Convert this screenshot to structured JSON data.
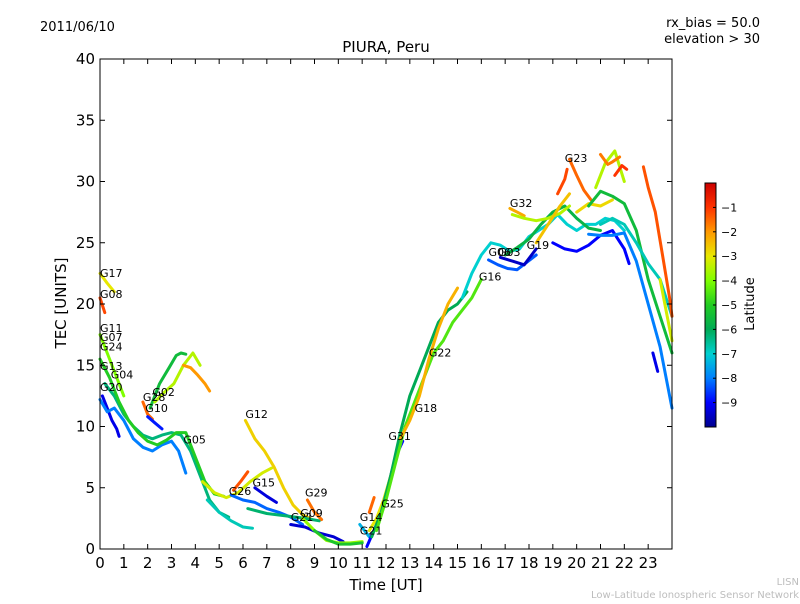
{
  "header": {
    "date": "2011/06/10",
    "info_line1": "rx_bias = 50.0",
    "info_line2": "elevation > 30"
  },
  "footer": {
    "line1": "LISN",
    "line2": "Low-Latitude Ionospheric Sensor Network"
  },
  "chart_data": {
    "type": "line",
    "title": "PIURA, Peru",
    "xlabel": "Time [UT]",
    "ylabel": "TEC [UNITS]",
    "xlim": [
      0,
      24
    ],
    "ylim": [
      0,
      40
    ],
    "xticks": [
      "0",
      "1",
      "2",
      "3",
      "4",
      "5",
      "6",
      "7",
      "8",
      "9",
      "10",
      "11",
      "12",
      "13",
      "14",
      "15",
      "16",
      "17",
      "18",
      "19",
      "20",
      "21",
      "22",
      "23"
    ],
    "yticks": [
      "0",
      "5",
      "10",
      "15",
      "20",
      "25",
      "30",
      "35",
      "40"
    ],
    "grid": false,
    "colorbar": {
      "label": "Latitude",
      "range": [
        -10,
        0
      ],
      "ticks": [
        "−1",
        "−2",
        "−3",
        "−4",
        "−5",
        "−6",
        "−7",
        "−8",
        "−9"
      ],
      "colors": [
        "#00008f",
        "#0000ff",
        "#007fff",
        "#00d0d0",
        "#00aa55",
        "#22cc22",
        "#7fff00",
        "#e8e800",
        "#ff9900",
        "#ff3300",
        "#cc0000"
      ]
    },
    "satellite_labels": [
      {
        "name": "G17",
        "x": 0.0,
        "y": 22.2
      },
      {
        "name": "G08",
        "x": 0.0,
        "y": 20.5
      },
      {
        "name": "G11",
        "x": 0.0,
        "y": 17.7
      },
      {
        "name": "G07",
        "x": 0.0,
        "y": 17.0
      },
      {
        "name": "G24",
        "x": 0.0,
        "y": 16.2
      },
      {
        "name": "G13",
        "x": 0.0,
        "y": 14.6
      },
      {
        "name": "G04",
        "x": 0.45,
        "y": 13.9
      },
      {
        "name": "G20",
        "x": 0.0,
        "y": 12.9
      },
      {
        "name": "G02",
        "x": 2.2,
        "y": 12.5
      },
      {
        "name": "G28",
        "x": 1.8,
        "y": 12.1
      },
      {
        "name": "G10",
        "x": 1.9,
        "y": 11.2
      },
      {
        "name": "G05",
        "x": 3.5,
        "y": 8.6
      },
      {
        "name": "G12",
        "x": 6.1,
        "y": 10.7
      },
      {
        "name": "G26",
        "x": 5.4,
        "y": 4.4
      },
      {
        "name": "G15",
        "x": 6.4,
        "y": 5.1
      },
      {
        "name": "G29",
        "x": 8.6,
        "y": 4.3
      },
      {
        "name": "G09",
        "x": 8.4,
        "y": 2.6
      },
      {
        "name": "G21",
        "x": 8.0,
        "y": 2.3
      },
      {
        "name": "G14",
        "x": 10.9,
        "y": 2.3
      },
      {
        "name": "G21",
        "x": 10.9,
        "y": 1.2
      },
      {
        "name": "G25",
        "x": 11.8,
        "y": 3.4
      },
      {
        "name": "G31",
        "x": 12.1,
        "y": 8.9
      },
      {
        "name": "G18",
        "x": 13.2,
        "y": 11.2
      },
      {
        "name": "G22",
        "x": 13.8,
        "y": 15.7
      },
      {
        "name": "G16",
        "x": 15.9,
        "y": 21.9
      },
      {
        "name": "G06",
        "x": 16.3,
        "y": 23.9
      },
      {
        "name": "G03",
        "x": 16.7,
        "y": 23.9
      },
      {
        "name": "G19",
        "x": 17.9,
        "y": 24.5
      },
      {
        "name": "G32",
        "x": 17.2,
        "y": 27.9
      },
      {
        "name": "G23",
        "x": 19.5,
        "y": 31.6
      }
    ],
    "series": [
      {
        "lat": -9.2,
        "x": [
          0.1,
          0.3,
          0.5,
          0.7,
          0.8
        ],
        "y": [
          12.5,
          11.5,
          10.5,
          9.8,
          9.2
        ]
      },
      {
        "lat": -8.0,
        "x": [
          0.0,
          0.3,
          0.6,
          1.0,
          1.4,
          1.8,
          2.2,
          2.6,
          3.0,
          3.3,
          3.6
        ],
        "y": [
          12.2,
          11.2,
          11.5,
          10.5,
          9.0,
          8.3,
          8.0,
          8.5,
          8.8,
          8.0,
          6.2
        ]
      },
      {
        "lat": -6.3,
        "x": [
          0.2,
          0.6,
          1.0,
          1.4,
          1.8,
          2.2,
          2.6,
          3.0,
          3.4,
          3.8,
          4.2,
          4.6,
          5.0,
          5.4
        ],
        "y": [
          13.5,
          12.5,
          11.0,
          10.0,
          9.3,
          9.0,
          9.3,
          9.5,
          9.3,
          8.0,
          6.0,
          4.0,
          3.0,
          2.6
        ]
      },
      {
        "lat": -5.0,
        "x": [
          0.0,
          0.4,
          0.8,
          1.2,
          1.6,
          2.0,
          2.4,
          2.8,
          3.2,
          3.6,
          4.0,
          4.4,
          4.8,
          5.2
        ],
        "y": [
          15.5,
          14.0,
          12.0,
          10.5,
          9.5,
          8.8,
          8.5,
          8.9,
          9.5,
          9.5,
          7.5,
          5.5,
          4.5,
          4.3
        ]
      },
      {
        "lat": -4.0,
        "x": [
          0.0,
          0.3,
          0.7,
          1.0
        ],
        "y": [
          17.5,
          16.0,
          14.0,
          12.5
        ]
      },
      {
        "lat": -3.0,
        "x": [
          0.0,
          0.3,
          0.6
        ],
        "y": [
          22.5,
          21.7,
          21.0
        ]
      },
      {
        "lat": -1.2,
        "x": [
          0.0,
          0.2
        ],
        "y": [
          20.5,
          19.3
        ]
      },
      {
        "lat": -1.5,
        "x": [
          1.8,
          2.0,
          2.2
        ],
        "y": [
          12.0,
          11.0,
          10.6
        ]
      },
      {
        "lat": -8.8,
        "x": [
          2.0,
          2.3,
          2.6
        ],
        "y": [
          10.8,
          10.3,
          9.8
        ]
      },
      {
        "lat": -5.5,
        "x": [
          2.1,
          2.5,
          2.9,
          3.2,
          3.4,
          3.6
        ],
        "y": [
          11.5,
          13.5,
          14.8,
          15.8,
          16.0,
          15.9
        ]
      },
      {
        "lat": -3.5,
        "x": [
          2.3,
          2.7,
          3.1,
          3.5,
          3.9,
          4.2
        ],
        "y": [
          12.0,
          12.8,
          13.5,
          15.0,
          16.0,
          15.0
        ]
      },
      {
        "lat": -2.0,
        "x": [
          3.5,
          3.8,
          4.1,
          4.4,
          4.6
        ],
        "y": [
          15.0,
          14.8,
          14.2,
          13.5,
          12.9
        ]
      },
      {
        "lat": -6.8,
        "x": [
          4.5,
          5.0,
          5.5,
          6.0,
          6.4
        ],
        "y": [
          4.0,
          3.0,
          2.3,
          1.8,
          1.7
        ]
      },
      {
        "lat": -3.2,
        "x": [
          4.3,
          4.8,
          5.3,
          5.8,
          6.3,
          6.8,
          7.2
        ],
        "y": [
          5.5,
          4.6,
          4.2,
          4.6,
          5.5,
          6.2,
          6.6
        ]
      },
      {
        "lat": -1.3,
        "x": [
          5.6,
          5.9,
          6.2
        ],
        "y": [
          4.8,
          5.5,
          6.3
        ]
      },
      {
        "lat": -2.7,
        "x": [
          6.1,
          6.5,
          6.9,
          7.3,
          7.7,
          8.1,
          8.5,
          8.9
        ],
        "y": [
          10.5,
          9.0,
          8.0,
          6.7,
          5.0,
          3.6,
          2.8,
          2.4
        ]
      },
      {
        "lat": -8.2,
        "x": [
          5.5,
          6.0,
          6.5,
          7.0,
          7.5,
          8.0,
          8.5
        ],
        "y": [
          4.4,
          4.0,
          3.8,
          3.3,
          3.0,
          2.6,
          2.0
        ]
      },
      {
        "lat": -9.3,
        "x": [
          6.5,
          7.0,
          7.4
        ],
        "y": [
          5.0,
          4.3,
          3.8
        ]
      },
      {
        "lat": -6.2,
        "x": [
          6.2,
          7.0,
          7.8,
          8.6,
          9.2
        ],
        "y": [
          3.3,
          2.9,
          2.7,
          2.5,
          2.3
        ]
      },
      {
        "lat": -1.6,
        "x": [
          8.7,
          9.0,
          9.3
        ],
        "y": [
          4.0,
          3.0,
          2.4
        ]
      },
      {
        "lat": -9.4,
        "x": [
          8.0,
          8.6,
          9.2,
          9.8,
          10.2
        ],
        "y": [
          2.0,
          1.8,
          1.3,
          1.0,
          0.6
        ]
      },
      {
        "lat": -3.8,
        "x": [
          8.5,
          9.0,
          9.5,
          10.0,
          10.5,
          11.0
        ],
        "y": [
          2.5,
          1.5,
          0.7,
          0.5,
          0.5,
          0.6
        ]
      },
      {
        "lat": -5.2,
        "x": [
          9.0,
          9.5,
          10.0,
          10.5,
          11.0
        ],
        "y": [
          1.5,
          0.8,
          0.4,
          0.4,
          0.5
        ]
      },
      {
        "lat": -7.4,
        "x": [
          10.9,
          11.1,
          11.3
        ],
        "y": [
          2.0,
          1.5,
          1.0
        ]
      },
      {
        "lat": -9.0,
        "x": [
          11.2,
          11.6,
          12.0,
          12.4,
          12.7
        ],
        "y": [
          0.2,
          2.0,
          4.5,
          7.5,
          8.8
        ]
      },
      {
        "lat": -3.0,
        "x": [
          11.3,
          11.6,
          11.9,
          12.2,
          12.5
        ],
        "y": [
          1.5,
          2.5,
          4.0,
          6.0,
          8.0
        ]
      },
      {
        "lat": -1.5,
        "x": [
          11.3,
          11.5
        ],
        "y": [
          3.0,
          4.2
        ]
      },
      {
        "lat": -6.0,
        "x": [
          11.4,
          11.8,
          12.2,
          12.6,
          13.0,
          13.4,
          13.8,
          14.2,
          14.6,
          15.0,
          15.4
        ],
        "y": [
          1.0,
          3.0,
          6.0,
          9.5,
          12.5,
          14.5,
          16.5,
          18.5,
          19.5,
          20.0,
          21.0
        ]
      },
      {
        "lat": -4.5,
        "x": [
          11.6,
          12.0,
          12.4,
          12.8,
          13.2,
          13.6,
          14.0,
          14.4,
          14.8,
          15.2,
          15.6,
          16.0
        ],
        "y": [
          1.5,
          4.0,
          7.0,
          10.0,
          12.0,
          14.0,
          16.0,
          17.0,
          18.5,
          19.5,
          20.5,
          22.0
        ]
      },
      {
        "lat": -2.3,
        "x": [
          12.6,
          13.0,
          13.4,
          13.8,
          14.2,
          14.6,
          15.0
        ],
        "y": [
          9.0,
          10.5,
          12.5,
          15.5,
          18.0,
          20.0,
          21.3
        ]
      },
      {
        "lat": -7.0,
        "x": [
          15.2,
          15.6,
          16.0,
          16.4,
          16.8,
          17.2,
          17.6,
          18.0,
          18.4,
          18.8,
          19.2,
          19.6,
          20.0,
          20.4,
          20.8,
          21.2,
          21.6,
          22.0
        ],
        "y": [
          20.5,
          22.5,
          24.0,
          25.0,
          24.8,
          24.3,
          24.5,
          25.5,
          26.0,
          26.5,
          27.3,
          26.5,
          26.0,
          26.5,
          26.5,
          27.0,
          26.8,
          26.0
        ]
      },
      {
        "lat": -8.3,
        "x": [
          16.3,
          16.7,
          17.1,
          17.5,
          17.9,
          18.3
        ],
        "y": [
          23.6,
          23.2,
          22.9,
          22.8,
          23.4,
          24.0
        ]
      },
      {
        "lat": -9.5,
        "x": [
          16.8,
          17.3,
          17.8,
          18.3
        ],
        "y": [
          23.8,
          23.5,
          23.2,
          24.5
        ]
      },
      {
        "lat": -5.7,
        "x": [
          17.0,
          17.5,
          18.0,
          18.5,
          19.0,
          19.5,
          20.0,
          20.5,
          21.0
        ],
        "y": [
          24.0,
          24.6,
          25.3,
          26.5,
          27.5,
          28.0,
          27.0,
          26.2,
          26.0
        ]
      },
      {
        "lat": -2.2,
        "x": [
          17.2,
          17.5,
          17.8
        ],
        "y": [
          27.8,
          27.5,
          27.2
        ]
      },
      {
        "lat": -3.5,
        "x": [
          17.3,
          17.8,
          18.3,
          18.8,
          19.3,
          19.7
        ],
        "y": [
          27.3,
          27.0,
          26.8,
          27.0,
          27.4,
          28.0
        ]
      },
      {
        "lat": -2.5,
        "x": [
          18.3,
          18.8,
          19.3,
          19.7
        ],
        "y": [
          25.0,
          26.5,
          28.0,
          29.0
        ]
      },
      {
        "lat": -1.2,
        "x": [
          19.2,
          19.5,
          19.6
        ],
        "y": [
          29.0,
          30.2,
          31.0
        ]
      },
      {
        "lat": -1.5,
        "x": [
          19.7,
          20.0,
          20.3,
          20.6
        ],
        "y": [
          31.8,
          30.5,
          29.3,
          28.5
        ]
      },
      {
        "lat": -2.8,
        "x": [
          20.0,
          20.5,
          21.0,
          21.5
        ],
        "y": [
          27.5,
          28.2,
          28.0,
          28.5
        ]
      },
      {
        "lat": -3.5,
        "x": [
          20.8,
          21.2,
          21.6,
          22.0
        ],
        "y": [
          29.5,
          31.5,
          32.5,
          30.0
        ]
      },
      {
        "lat": -1.7,
        "x": [
          21.0,
          21.3,
          21.5,
          21.8
        ],
        "y": [
          32.2,
          31.4,
          31.6,
          32.0
        ]
      },
      {
        "lat": -1.0,
        "x": [
          21.6,
          21.9,
          22.1
        ],
        "y": [
          30.5,
          31.3,
          31.0
        ]
      },
      {
        "lat": -9.0,
        "x": [
          19.0,
          19.5,
          20.0,
          20.5,
          21.0,
          21.5,
          22.0,
          22.2
        ],
        "y": [
          25.0,
          24.5,
          24.3,
          24.8,
          25.6,
          26.0,
          24.5,
          23.3
        ]
      },
      {
        "lat": -8.0,
        "x": [
          20.5,
          21.0,
          21.5,
          22.0,
          22.5,
          23.0,
          23.5,
          24.0
        ],
        "y": [
          25.7,
          25.6,
          25.6,
          25.8,
          23.5,
          20.0,
          16.5,
          11.5
        ]
      },
      {
        "lat": -5.5,
        "x": [
          20.5,
          21.0,
          21.5,
          22.0,
          22.5,
          23.0,
          23.5,
          24.0
        ],
        "y": [
          28.0,
          29.2,
          28.8,
          28.2,
          26.0,
          22.0,
          19.0,
          16.0
        ]
      },
      {
        "lat": -6.8,
        "x": [
          21.0,
          21.5,
          22.0,
          22.5,
          23.0,
          23.5,
          24.0
        ],
        "y": [
          26.5,
          27.0,
          26.5,
          25.0,
          23.3,
          22.0,
          19.0
        ]
      },
      {
        "lat": -1.3,
        "x": [
          22.8,
          23.0,
          23.3,
          23.6,
          23.9,
          24.0
        ],
        "y": [
          31.2,
          29.5,
          27.5,
          24.0,
          20.5,
          19.0
        ]
      },
      {
        "lat": -3.2,
        "x": [
          23.5,
          23.8,
          24.0
        ],
        "y": [
          22.0,
          19.0,
          17.0
        ]
      },
      {
        "lat": -9.2,
        "x": [
          23.2,
          23.4
        ],
        "y": [
          16.0,
          14.5
        ]
      }
    ]
  }
}
